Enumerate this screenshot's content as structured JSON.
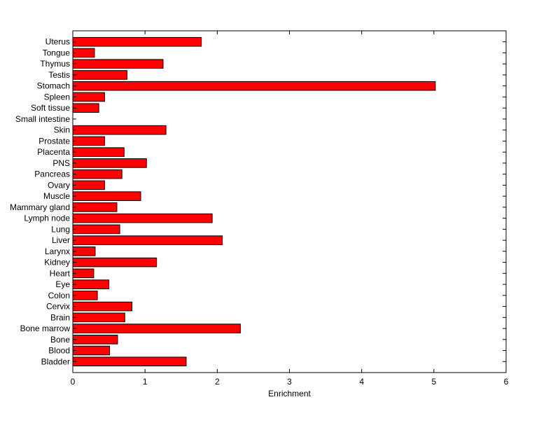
{
  "chart_data": {
    "type": "bar",
    "orientation": "horizontal",
    "categories": [
      "Uterus",
      "Tongue",
      "Thymus",
      "Testis",
      "Stomach",
      "Spleen",
      "Soft tissue",
      "Small intestine",
      "Skin",
      "Prostate",
      "Placenta",
      "PNS",
      "Pancreas",
      "Ovary",
      "Muscle",
      "Mammary gland",
      "Lymph node",
      "Lung",
      "Liver",
      "Larynx",
      "Kidney",
      "Heart",
      "Eye",
      "Colon",
      "Cervix",
      "Brain",
      "Bone marrow",
      "Bone",
      "Blood",
      "Bladder"
    ],
    "values": [
      1.78,
      0.3,
      1.25,
      0.75,
      5.02,
      0.44,
      0.36,
      0.0,
      1.29,
      0.44,
      0.71,
      1.02,
      0.68,
      0.44,
      0.94,
      0.61,
      1.93,
      0.65,
      2.07,
      0.31,
      1.16,
      0.29,
      0.5,
      0.34,
      0.82,
      0.72,
      2.32,
      0.62,
      0.51,
      1.57
    ],
    "title": "",
    "xlabel": "Enrichment",
    "ylabel": "",
    "xlim": [
      0,
      6
    ],
    "xticks": [
      0,
      1,
      2,
      3,
      4,
      5,
      6
    ],
    "grid": false,
    "bar_color": "#ff0000",
    "bar_edge_color": "#000000"
  }
}
